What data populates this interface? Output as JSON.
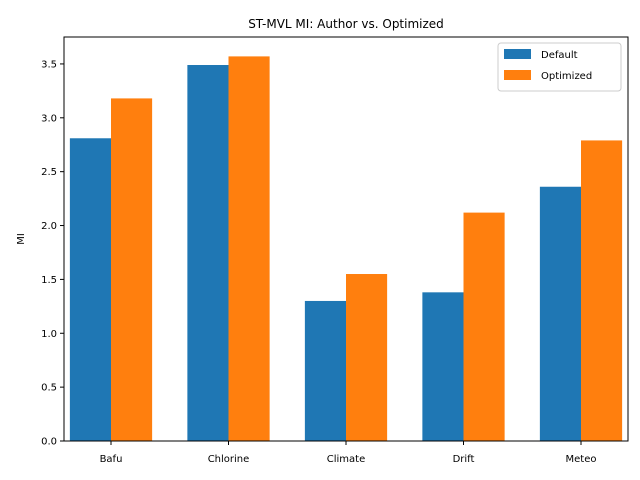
{
  "chart_data": {
    "type": "bar",
    "title": "ST-MVL MI: Author vs. Optimized",
    "xlabel": "",
    "ylabel": "MI",
    "categories": [
      "Bafu",
      "Chlorine",
      "Climate",
      "Drift",
      "Meteo"
    ],
    "series": [
      {
        "name": "Default",
        "values": [
          2.81,
          3.49,
          1.3,
          1.38,
          2.36
        ],
        "color": "#1f77b4"
      },
      {
        "name": "Optimized",
        "values": [
          3.18,
          3.57,
          1.55,
          2.12,
          2.79
        ],
        "color": "#ff7f0e"
      }
    ],
    "ylim": [
      0,
      3.75
    ],
    "yticks": [
      "0.0",
      "0.5",
      "1.0",
      "1.5",
      "2.0",
      "2.5",
      "3.0",
      "3.5"
    ],
    "grid": false,
    "legend_position": "top-right"
  }
}
